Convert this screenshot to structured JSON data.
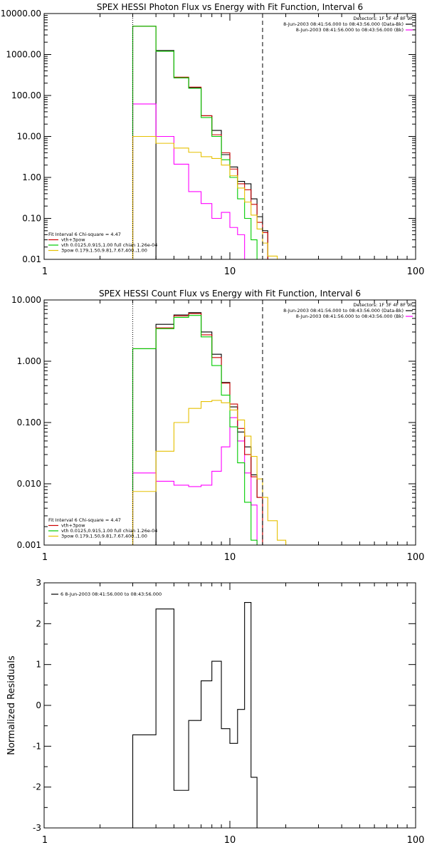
{
  "chart_data": [
    {
      "type": "line",
      "step": true,
      "title": "SPEX HESSI Photon Flux vs Energy with Fit Function, Interval 6",
      "xlabel": "",
      "ylabel": "",
      "xscale": "log",
      "yscale": "log",
      "xlim": [
        1,
        100
      ],
      "ylim": [
        0.01,
        10000
      ],
      "xticks": [
        1,
        10,
        100
      ],
      "xtick_labels": [
        "1",
        "10",
        "100"
      ],
      "yticks": [
        0.01,
        0.1,
        1,
        10,
        100,
        1000,
        10000
      ],
      "ytick_labels": [
        "0.01",
        "0.10",
        "1.00",
        "10.00",
        "100.00",
        "1000.00",
        "10000.00"
      ],
      "vlines": [
        {
          "x": 3,
          "style": "dotted",
          "color": "#000000"
        },
        {
          "x": 15,
          "style": "dashed",
          "color": "#000000"
        }
      ],
      "legend_top": {
        "placement": "top-right",
        "header": "Detectors: 1F 3F 4F 8F 9F",
        "entries": [
          {
            "label": "8-Jun-2003 08:41:56.000 to 08:43:56.000 (Data-Bk)",
            "color": "#000000"
          },
          {
            "label": "8-Jun-2003 08:41:56.000 to 08:43:56.000 (Bk)",
            "color": "#ff00ff"
          }
        ]
      },
      "legend_bottom": {
        "placement": "bottom-left",
        "header": "Fit Interval 6   Chi-square = 4.47",
        "entries": [
          {
            "label": "vth+3pow",
            "color": "#cc0000"
          },
          {
            "label": "vth 0.0125,0.915,1.00  full chian 1.26e-04",
            "color": "#00cc00"
          },
          {
            "label": "3pow 0.179,1.50,9.81,7.67,400.,1.00",
            "color": "#e6c000"
          }
        ]
      },
      "edges": [
        3,
        4,
        5,
        6,
        7,
        8,
        9,
        10,
        11,
        12,
        13,
        14,
        15,
        16,
        18
      ],
      "series": [
        {
          "color": "#000000",
          "values": [
            null,
            1250,
            270,
            155,
            32,
            14,
            3.6,
            1.8,
            0.8,
            0.7,
            0.3,
            0.11,
            0.05,
            null
          ]
        },
        {
          "color": "#ff00ff",
          "values": [
            62,
            10,
            2.1,
            0.45,
            0.23,
            0.1,
            0.14,
            0.06,
            0.04,
            0.01,
            null,
            null,
            null,
            null
          ]
        },
        {
          "color": "#cc0000",
          "values": [
            4900,
            1200,
            280,
            160,
            32,
            11,
            4.0,
            1.6,
            0.7,
            0.5,
            0.22,
            0.08,
            0.045,
            null
          ]
        },
        {
          "color": "#00cc00",
          "values": [
            4900,
            1200,
            270,
            150,
            29,
            10,
            2.7,
            1.0,
            0.3,
            0.1,
            0.03,
            0.01,
            null,
            null
          ]
        },
        {
          "color": "#e6c000",
          "values": [
            10,
            6.8,
            5.2,
            4.1,
            3.2,
            2.9,
            2.0,
            1.1,
            0.55,
            0.25,
            0.12,
            0.055,
            0.025,
            0.012
          ]
        }
      ]
    },
    {
      "type": "line",
      "step": true,
      "title": "SPEX HESSI Count Flux vs Energy with Fit Function, Interval 6",
      "xlabel": "",
      "ylabel": "",
      "xscale": "log",
      "yscale": "log",
      "xlim": [
        1,
        100
      ],
      "ylim": [
        0.001,
        10
      ],
      "xticks": [
        1,
        10,
        100
      ],
      "xtick_labels": [
        "1",
        "10",
        "100"
      ],
      "yticks": [
        0.001,
        0.01,
        0.1,
        1,
        10
      ],
      "ytick_labels": [
        "0.001",
        "0.010",
        "0.100",
        "1.000",
        "10.000"
      ],
      "vlines": [
        {
          "x": 3,
          "style": "dotted",
          "color": "#000000"
        },
        {
          "x": 15,
          "style": "dashed",
          "color": "#000000"
        }
      ],
      "legend_top": {
        "placement": "top-right",
        "header": "Detectors: 1F 3F 4F 8F 9F",
        "entries": [
          {
            "label": "8-Jun-2003 08:41:56.000 to 08:43:56.000 (Data-Bk)",
            "color": "#000000"
          },
          {
            "label": "8-Jun-2003 08:41:56.000 to 08:43:56.000 (Bk)",
            "color": "#ff00ff"
          }
        ]
      },
      "legend_bottom": {
        "placement": "bottom-left",
        "header": "Fit Interval 6   Chi-square = 4.47",
        "entries": [
          {
            "label": "vth+3pow",
            "color": "#cc0000"
          },
          {
            "label": "vth 0.0125,0.915,1.00  full chian 1.26e-04",
            "color": "#00cc00"
          },
          {
            "label": "3pow 0.179,1.50,9.81,7.67,400.,1.00",
            "color": "#e6c000"
          }
        ]
      },
      "edges": [
        3,
        4,
        5,
        6,
        7,
        8,
        9,
        10,
        11,
        12,
        13,
        14,
        15,
        16,
        18,
        20
      ],
      "series": [
        {
          "color": "#000000",
          "values": [
            null,
            4.0,
            5.7,
            6.2,
            3.0,
            1.3,
            0.45,
            0.18,
            0.07,
            0.04,
            0.014,
            0.006,
            null,
            null,
            null
          ]
        },
        {
          "color": "#ff00ff",
          "values": [
            0.015,
            0.011,
            0.0095,
            0.009,
            0.0095,
            0.016,
            0.04,
            0.12,
            0.05,
            0.015,
            0.0045,
            null,
            null,
            null,
            null
          ]
        },
        {
          "color": "#cc0000",
          "values": [
            1.6,
            3.5,
            5.5,
            6.0,
            2.7,
            1.15,
            0.44,
            0.2,
            0.08,
            0.03,
            0.013,
            0.006,
            null,
            null,
            null
          ]
        },
        {
          "color": "#00cc00",
          "values": [
            1.6,
            3.4,
            5.2,
            5.6,
            2.5,
            0.85,
            0.28,
            0.085,
            0.022,
            0.005,
            0.0012,
            null,
            null,
            null,
            null
          ]
        },
        {
          "color": "#e6c000",
          "values": [
            0.0075,
            0.034,
            0.1,
            0.17,
            0.22,
            0.23,
            0.21,
            0.16,
            0.11,
            0.06,
            0.028,
            0.012,
            0.006,
            0.0025,
            0.0012
          ]
        }
      ]
    },
    {
      "type": "line",
      "step": true,
      "title": "",
      "xlabel": "",
      "ylabel": "Normalized Residuals",
      "xscale": "log",
      "yscale": "linear",
      "xlim": [
        1,
        100
      ],
      "ylim": [
        -3,
        3
      ],
      "xticks": [
        1,
        10,
        100
      ],
      "xtick_labels": [
        "1",
        "10",
        "100"
      ],
      "yticks": [
        -3,
        -2,
        -1,
        0,
        1,
        2,
        3
      ],
      "ytick_labels": [
        "-3",
        "-2",
        "-1",
        "0",
        "1",
        "2",
        "3"
      ],
      "legend": {
        "placement": "top-left",
        "entries": [
          {
            "label": "6  8-Jun-2003 08:41:56.000 to 08:43:56.000",
            "color": "#000000"
          }
        ]
      },
      "edges": [
        3,
        4,
        5,
        6,
        7,
        8,
        9,
        10,
        11,
        12,
        13,
        14,
        15
      ],
      "series": [
        {
          "color": "#000000",
          "values": [
            -0.72,
            2.36,
            -2.08,
            -0.37,
            0.6,
            1.08,
            -0.57,
            -0.93,
            -0.1,
            2.52,
            -1.76,
            null
          ]
        }
      ]
    }
  ]
}
